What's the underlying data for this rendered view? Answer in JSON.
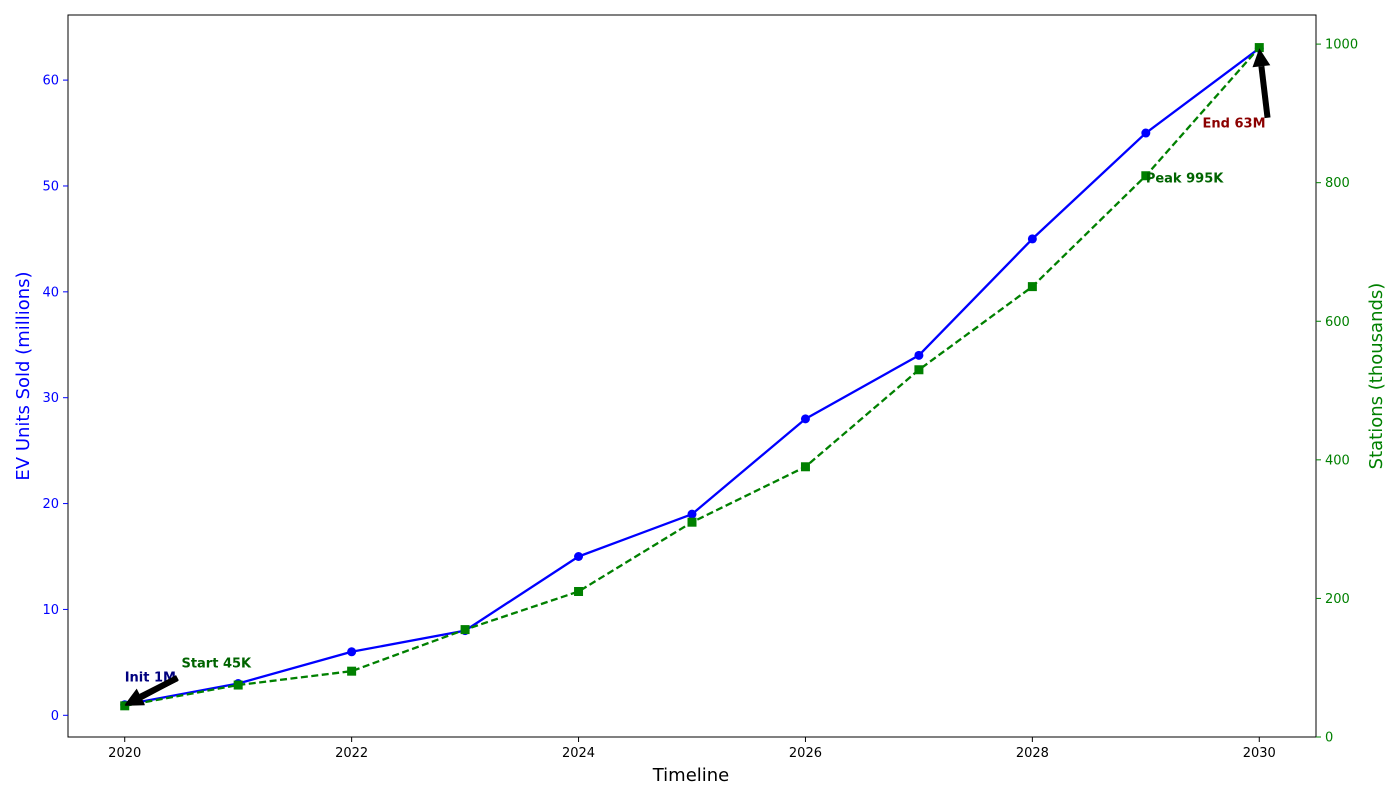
{
  "chart_data": {
    "type": "line",
    "xlabel": "Timeline",
    "x_ticks": [
      2020,
      2022,
      2024,
      2026,
      2028,
      2030
    ],
    "xlim": [
      2019.5,
      2030.5
    ],
    "axes": {
      "left": {
        "label": "EV Units Sold (millions)",
        "color": "#0000ff",
        "ylim": [
          -2.05,
          66.15
        ],
        "ticks": [
          0,
          10,
          20,
          30,
          40,
          50,
          60
        ]
      },
      "right": {
        "label": "Stations (thousands)",
        "color": "#008000",
        "ylim": [
          0,
          1042
        ],
        "ticks": [
          0,
          200,
          400,
          600,
          800,
          1000
        ]
      }
    },
    "series": [
      {
        "axis": "left",
        "color": "#0000ff",
        "style": "solid",
        "marker": "circle",
        "x": [
          2020,
          2021,
          2022,
          2023,
          2024,
          2025,
          2026,
          2027,
          2028,
          2029,
          2030
        ],
        "y": [
          1,
          3,
          6,
          8,
          15,
          19,
          28,
          34,
          45,
          55,
          63
        ]
      },
      {
        "axis": "right",
        "color": "#008000",
        "style": "dashed",
        "marker": "square",
        "x": [
          2020,
          2021,
          2022,
          2023,
          2024,
          2025,
          2026,
          2027,
          2028,
          2029,
          2030
        ],
        "y": [
          45,
          75,
          95,
          155,
          210,
          310,
          390,
          530,
          650,
          810,
          995
        ]
      }
    ],
    "annotations": [
      {
        "text": "Init 1M",
        "color": "#00007f",
        "axis": "left",
        "x": 2020,
        "y": 1,
        "text_x": 2020,
        "text_y": 3.2,
        "arrow": true
      },
      {
        "text": "Start 45K",
        "color": "#006400",
        "axis": "right",
        "x": 2020,
        "y": 45,
        "text_x": 2020.5,
        "text_y": 100,
        "arrow": true
      },
      {
        "text": "End 63M",
        "color": "#8b0000",
        "axis": "left",
        "x": 2030,
        "y": 63,
        "text_x": 2029.5,
        "text_y": 55.5,
        "arrow": true
      },
      {
        "text": "Peak 995K",
        "color": "#006400",
        "axis": "right",
        "x": 2029,
        "y": 810,
        "text_x": 2029,
        "text_y": 800,
        "arrow": false
      }
    ],
    "grid": false,
    "legend": "none"
  }
}
